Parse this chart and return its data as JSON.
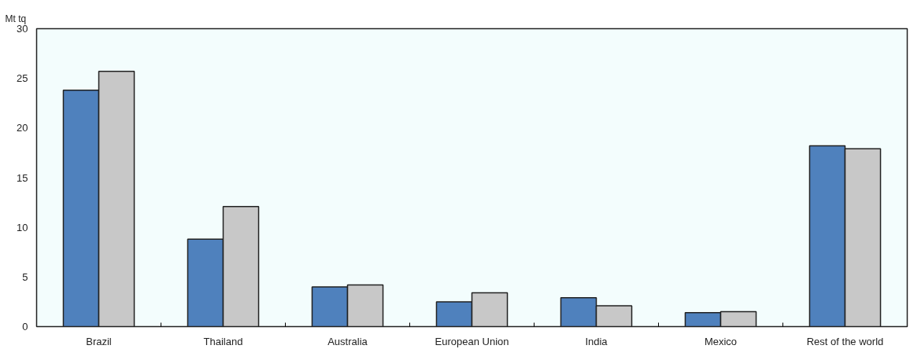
{
  "chart_data": {
    "type": "bar",
    "ylabel": "Mt tq",
    "categories": [
      "Brazil",
      "Thailand",
      "Australia",
      "European Union",
      "India",
      "Mexico",
      "Rest of the world"
    ],
    "series": [
      {
        "color": "#4f81bd",
        "values": [
          23.8,
          8.8,
          4.0,
          2.5,
          2.9,
          1.4,
          18.2
        ]
      },
      {
        "color": "#c8c8c8",
        "values": [
          25.7,
          12.1,
          4.2,
          3.4,
          2.1,
          1.5,
          17.9
        ]
      }
    ],
    "ylim": [
      0,
      30
    ],
    "yticks": [
      0,
      5,
      10,
      15,
      20,
      25,
      30
    ],
    "grid": false
  }
}
